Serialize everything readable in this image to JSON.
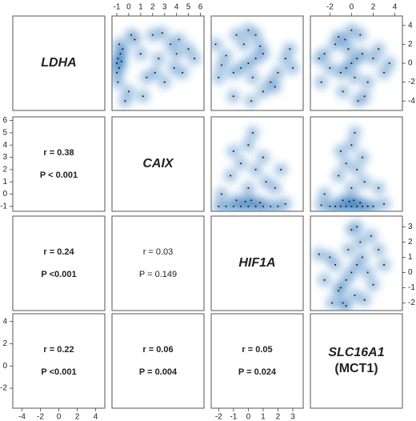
{
  "chart_data": {
    "type": "pairs",
    "variables": [
      {
        "label": [
          "LDHA"
        ],
        "lim": [
          -5,
          5
        ],
        "ticks": [
          -4,
          -2,
          0,
          2,
          4
        ]
      },
      {
        "label": [
          "CAIX"
        ],
        "lim": [
          -1.4,
          6.3
        ],
        "ticks": [
          -1,
          0,
          1,
          2,
          3,
          4,
          5,
          6
        ]
      },
      {
        "label": [
          "HIF1A"
        ],
        "lim": [
          -2.5,
          3.7
        ],
        "ticks": [
          -2,
          -1,
          0,
          1,
          2,
          3
        ]
      },
      {
        "label": [
          "SLC16A1",
          "(MCT1)"
        ],
        "lim": [
          -3.8,
          4.7
        ],
        "ticks": [
          -2,
          0,
          2,
          4
        ]
      }
    ],
    "color": "#2f78bd",
    "panels": [
      {
        "x": [
          -1,
          -0.9,
          -0.8,
          -0.7,
          -1,
          -0.6,
          -0.9,
          -0.5,
          -0.8,
          0,
          0.5,
          1,
          1.5,
          2,
          2.5,
          3,
          3.5,
          4,
          4.5,
          5,
          1.2,
          2.8,
          3.8,
          -0.3,
          0.2,
          2.2,
          4.2,
          5.5
        ],
        "y": [
          0,
          0.5,
          -0.5,
          1,
          -1,
          0.2,
          -2,
          1.5,
          2,
          -3,
          2.5,
          1,
          -1.5,
          3,
          0.5,
          -2,
          2,
          1,
          -1,
          1.5,
          -3.5,
          3.2,
          -0.5,
          -4,
          3,
          -1,
          2.5,
          0.5
        ]
      },
      {
        "x": [
          0,
          0.5,
          -0.5,
          1,
          -1,
          0.3,
          0.8,
          -0.3,
          1.5,
          -1.5,
          2,
          -2,
          2.5,
          -2.2,
          0,
          1,
          3,
          -1,
          0.5,
          2.8,
          -1.8,
          1.8,
          0.2,
          -0.8
        ],
        "y": [
          0,
          0.5,
          -0.5,
          1,
          -1,
          -1.5,
          1.8,
          2,
          -2,
          0.8,
          -1,
          -1.5,
          0.5,
          2,
          3.5,
          -3,
          -0.5,
          -3.5,
          3,
          1.5,
          -0.2,
          -2.5,
          -4,
          3
        ]
      },
      {
        "x": [
          0,
          0.5,
          -0.5,
          1,
          -1,
          0.3,
          -0.3,
          1.5,
          -1.5,
          2,
          -2,
          2.5,
          -2.5,
          0.8,
          -0.8,
          3,
          -3,
          1.2,
          -1.2,
          0,
          3.5,
          -2.8,
          0.6,
          -0.6
        ],
        "y": [
          0,
          0.5,
          -0.5,
          1,
          -1,
          -1.5,
          1.5,
          -2,
          2,
          0.5,
          -0.5,
          1.5,
          1,
          3,
          -3,
          -1,
          0.5,
          -3.5,
          2.8,
          3.5,
          0,
          -2,
          -4,
          2.5
        ]
      },
      {
        "x": [
          0,
          0.5,
          -0.5,
          1,
          -1,
          1.5,
          -1.5,
          2,
          -2,
          0.2,
          -0.2,
          0.8,
          -0.8,
          0,
          1.2,
          -1.2,
          0.5,
          -0.5,
          2.5,
          1,
          -1,
          0,
          1.8,
          -1.8,
          0.3,
          2.2
        ],
        "y": [
          -1,
          -1,
          -1,
          -1,
          -1,
          -1,
          -1,
          -1,
          -1,
          -0.5,
          -0.6,
          -0.7,
          -0.5,
          0.5,
          1,
          1.5,
          2,
          2.5,
          -0.8,
          3,
          3.5,
          4,
          0.5,
          0,
          5,
          2
        ]
      },
      {
        "x": [
          0,
          0.5,
          -0.5,
          1,
          -1,
          1.5,
          -1.5,
          2,
          -2,
          0.2,
          -0.2,
          0.8,
          -0.8,
          0,
          1.2,
          -1.2,
          0.5,
          -0.5,
          3,
          1,
          -1,
          0,
          2.5,
          -2.5,
          0.3,
          -2.8
        ],
        "y": [
          -1,
          -1,
          -1,
          -1,
          -1,
          -1,
          -1,
          -1,
          -1,
          -0.5,
          -0.6,
          -0.7,
          -0.5,
          0.5,
          1,
          1.5,
          2,
          2.5,
          -0.8,
          3,
          3.5,
          4,
          0.5,
          0,
          5,
          -0.9
        ]
      },
      {
        "x": [
          0,
          0.5,
          -0.5,
          1,
          -1,
          0.3,
          -0.3,
          1.5,
          -1.5,
          2,
          -2,
          0.8,
          -0.8,
          0,
          1.2,
          -1.2,
          2.5,
          -2.5,
          0.5,
          -0.5,
          3,
          -3,
          1.8,
          -1.8
        ],
        "y": [
          0,
          0.5,
          -0.5,
          1,
          -1,
          -1.5,
          1.5,
          0,
          0.5,
          -0.8,
          1,
          2,
          -2,
          2.8,
          -1.8,
          -1.2,
          1.5,
          -0.5,
          3,
          -2.2,
          0.5,
          1.2,
          2.4,
          -2
        ]
      }
    ],
    "correlations": [
      {
        "r": "r = 0.38",
        "p": "P < 0.001",
        "bold": true
      },
      {
        "r": "r = 0.24",
        "p": "P <0.001",
        "bold": true
      },
      {
        "r": "r = 0.22",
        "p": "P <0.001",
        "bold": true
      },
      {
        "r": "r = 0.03",
        "p": "P = 0.149",
        "bold": false
      },
      {
        "r": "r = 0.06",
        "p": "P = 0.004",
        "bold": true
      },
      {
        "r": "r = 0.05",
        "p": "P = 0.024",
        "bold": true
      }
    ]
  }
}
